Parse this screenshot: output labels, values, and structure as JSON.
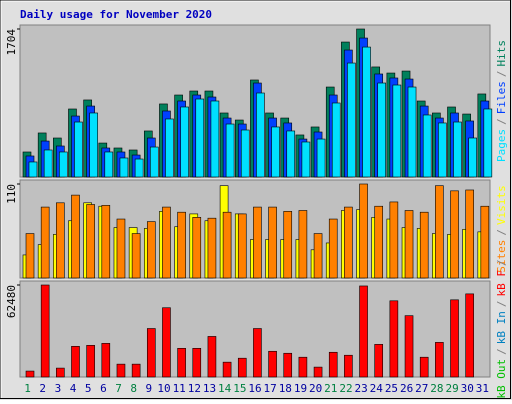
{
  "chart_data": {
    "type": "bar",
    "title": "Daily usage for November 2020",
    "categories": [
      "1",
      "2",
      "3",
      "4",
      "5",
      "6",
      "7",
      "8",
      "9",
      "10",
      "11",
      "12",
      "13",
      "14",
      "15",
      "16",
      "17",
      "18",
      "19",
      "20",
      "21",
      "22",
      "23",
      "24",
      "25",
      "26",
      "27",
      "28",
      "29",
      "30",
      "31"
    ],
    "label_colors": [
      "#008040",
      "#0000a0",
      "#0000a0",
      "#0000a0",
      "#0000a0",
      "#0000a0",
      "#008040",
      "#008040",
      "#0000a0",
      "#0000a0",
      "#0000a0",
      "#0000a0",
      "#0000a0",
      "#008040",
      "#008040",
      "#0000a0",
      "#0000a0",
      "#0000a0",
      "#0000a0",
      "#0000a0",
      "#008040",
      "#008040",
      "#0000a0",
      "#0000a0",
      "#0000a0",
      "#0000a0",
      "#0000a0",
      "#008040",
      "#008040",
      "#0000a0",
      "#0000a0"
    ],
    "legend_separator": "/",
    "panels": [
      {
        "ylim": [
          0,
          1704
        ],
        "yticks": [
          1704
        ],
        "series": [
          {
            "name": "Hits",
            "color": "#00805c",
            "values": [
              288,
              507,
              449,
              783,
              887,
              391,
              334,
              311,
              530,
              841,
              944,
              990,
              990,
              737,
              656,
              1117,
              737,
              679,
              484,
              576,
              1036,
              1554,
              1704,
              1267,
              1197,
              1220,
              875,
              737,
              806,
              725,
              956
            ]
          },
          {
            "name": "Files",
            "color": "#0040ff",
            "values": [
              242,
              414,
              357,
              702,
              817,
              334,
              288,
              253,
              449,
              760,
              875,
              944,
              921,
              679,
              610,
              1082,
              679,
              622,
              437,
              518,
              944,
              1462,
              1600,
              1186,
              1140,
              1128,
              817,
              679,
              737,
              645,
              875
            ]
          },
          {
            "name": "Pages",
            "color": "#00e0ff",
            "values": [
              173,
              311,
              288,
              633,
              737,
              288,
              219,
              207,
              345,
              668,
              806,
              898,
              875,
              610,
              541,
              967,
              576,
              530,
              403,
              437,
              852,
              1312,
              1496,
              1082,
              1059,
              1036,
              714,
              622,
              633,
              449,
              783
            ]
          }
        ]
      },
      {
        "ylim": [
          0,
          110
        ],
        "yticks": [
          110
        ],
        "series": [
          {
            "name": "Visits",
            "color": "#ffff00",
            "values": [
              27,
              39,
              51,
              67,
              88,
              84,
              59,
              59,
              58,
              78,
              60,
              75,
              67,
              108,
              75,
              45,
              45,
              45,
              45,
              33,
              41,
              79,
              80,
              71,
              69,
              59,
              58,
              52,
              51,
              57,
              54
            ]
          },
          {
            "name": "Sites",
            "color": "#ff8000",
            "values": [
              52,
              83,
              88,
              97,
              86,
              85,
              69,
              52,
              66,
              83,
              77,
              71,
              70,
              77,
              75,
              83,
              83,
              78,
              79,
              52,
              69,
              83,
              110,
              84,
              89,
              79,
              77,
              108,
              102,
              103,
              84
            ]
          }
        ]
      },
      {
        "ylim": [
          0,
          62480
        ],
        "yticks": [
          62480
        ],
        "series": [
          {
            "name": "kB F",
            "color": "#ff0000",
            "values": [
              4032,
              62480,
              6048,
              20832,
              21504,
              22848,
              8736,
              8736,
              32928,
              47040,
              19488,
              19488,
              27552,
              10080,
              12768,
              32928,
              17472,
              16128,
              13440,
              6720,
              16800,
              14784,
              61824,
              22176,
              51744,
              41664,
              13440,
              23520,
              52416,
              56448,
              0
            ]
          },
          {
            "name": "kB In",
            "color": "#0080c0"
          },
          {
            "name": "kB Out",
            "color": "#00c000"
          }
        ]
      }
    ]
  }
}
